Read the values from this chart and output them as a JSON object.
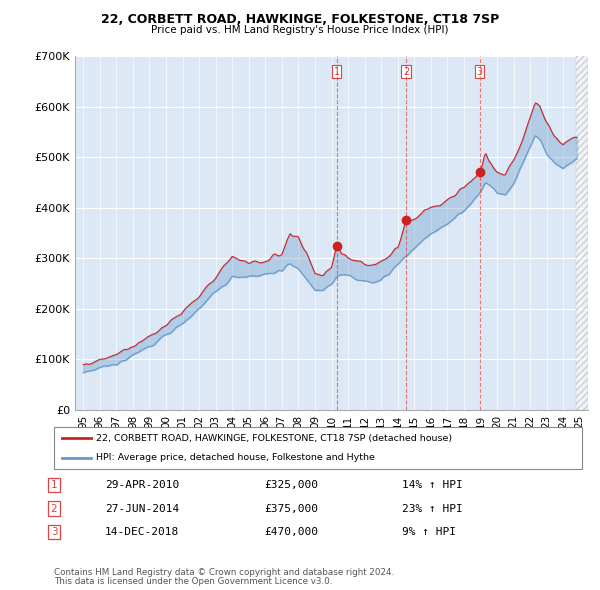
{
  "title": "22, CORBETT ROAD, HAWKINGE, FOLKESTONE, CT18 7SP",
  "subtitle": "Price paid vs. HM Land Registry's House Price Index (HPI)",
  "legend_line1": "22, CORBETT ROAD, HAWKINGE, FOLKESTONE, CT18 7SP (detached house)",
  "legend_line2": "HPI: Average price, detached house, Folkestone and Hythe",
  "footer1": "Contains HM Land Registry data © Crown copyright and database right 2024.",
  "footer2": "This data is licensed under the Open Government Licence v3.0.",
  "transactions": [
    {
      "num": 1,
      "date": "29-APR-2010",
      "price": 325000,
      "pct": "14%",
      "dir": "↑"
    },
    {
      "num": 2,
      "date": "27-JUN-2014",
      "price": 375000,
      "pct": "23%",
      "dir": "↑"
    },
    {
      "num": 3,
      "date": "14-DEC-2018",
      "price": 470000,
      "pct": "9%",
      "dir": "↑"
    }
  ],
  "transaction_dates_decimal": [
    2010.33,
    2014.5,
    2018.96
  ],
  "transaction_prices": [
    325000,
    375000,
    470000
  ],
  "vline_color": "#dd4444",
  "subject_color": "#cc2222",
  "hpi_color": "#6699cc",
  "background_color": "#ffffff",
  "plot_bg_color": "#dce8f5",
  "grid_color": "#ffffff",
  "hatch_color": "#cccccc",
  "ylim": [
    0,
    700000
  ],
  "xlim_start": 1994.5,
  "xlim_end": 2025.5,
  "data_end_x": 2024.75,
  "yticks": [
    0,
    100000,
    200000,
    300000,
    400000,
    500000,
    600000,
    700000
  ],
  "ytick_labels": [
    "£0",
    "£100K",
    "£200K",
    "£300K",
    "£400K",
    "£500K",
    "£600K",
    "£700K"
  ],
  "xticks": [
    1995,
    1996,
    1997,
    1998,
    1999,
    2000,
    2001,
    2002,
    2003,
    2004,
    2005,
    2006,
    2007,
    2008,
    2009,
    2010,
    2011,
    2012,
    2013,
    2014,
    2015,
    2016,
    2017,
    2018,
    2019,
    2020,
    2021,
    2022,
    2023,
    2024,
    2025
  ],
  "xtick_labels": [
    "95",
    "96",
    "97",
    "98",
    "99",
    "00",
    "01",
    "02",
    "03",
    "04",
    "05",
    "06",
    "07",
    "08",
    "09",
    "10",
    "11",
    "12",
    "13",
    "14",
    "15",
    "16",
    "17",
    "18",
    "19",
    "20",
    "21",
    "22",
    "23",
    "24",
    "25"
  ]
}
